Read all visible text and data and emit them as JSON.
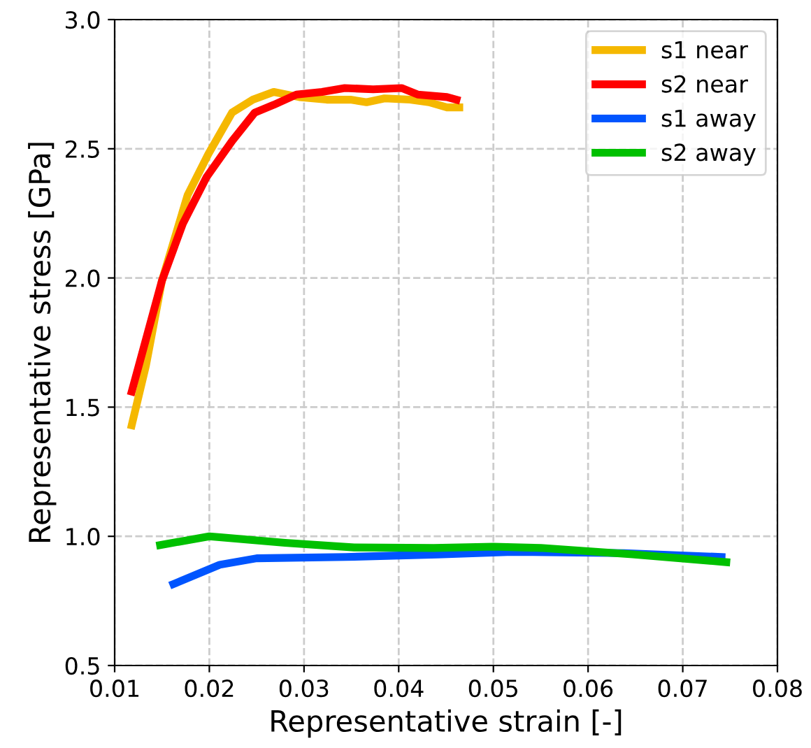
{
  "chart_data": {
    "type": "line",
    "xlabel": "Representative strain [-]",
    "ylabel": "Representative stress [GPa]",
    "xlim": [
      0.01,
      0.08
    ],
    "xticks": [
      {
        "value": 0.01,
        "label": "0.01"
      },
      {
        "value": 0.02,
        "label": "0.02"
      },
      {
        "value": 0.03,
        "label": "0.03"
      },
      {
        "value": 0.04,
        "label": "0.04"
      },
      {
        "value": 0.05,
        "label": "0.05"
      },
      {
        "value": 0.06,
        "label": "0.06"
      },
      {
        "value": 0.07,
        "label": "0.07"
      },
      {
        "value": 0.08,
        "label": "0.08"
      }
    ],
    "ylim": [
      0.5,
      3.0
    ],
    "yticks": [
      {
        "value": 0.5,
        "label": "0.5"
      },
      {
        "value": 1.0,
        "label": "1.0"
      },
      {
        "value": 1.5,
        "label": "1.5"
      },
      {
        "value": 2.0,
        "label": "2.0"
      },
      {
        "value": 2.5,
        "label": "2.5"
      },
      {
        "value": 3.0,
        "label": "3.0"
      }
    ],
    "grid": true,
    "legend": "top right",
    "line_style": "solid",
    "marker": "none",
    "series": [
      {
        "name": "s1 near",
        "color": "#f5b800",
        "x": [
          0.0118,
          0.0133,
          0.015,
          0.0177,
          0.0199,
          0.0224,
          0.0246,
          0.0268,
          0.0295,
          0.0324,
          0.0349,
          0.0366,
          0.0385,
          0.0412,
          0.0432,
          0.0451,
          0.0464
        ],
        "values": [
          1.43,
          1.66,
          1.99,
          2.32,
          2.48,
          2.64,
          2.69,
          2.72,
          2.7,
          2.69,
          2.69,
          2.68,
          2.695,
          2.69,
          2.68,
          2.66,
          2.66
        ]
      },
      {
        "name": "s2 near",
        "color": "#ff0000",
        "x": [
          0.0118,
          0.015,
          0.0172,
          0.0197,
          0.0224,
          0.0248,
          0.0268,
          0.0292,
          0.0319,
          0.0343,
          0.0373,
          0.0403,
          0.042,
          0.0451,
          0.0461
        ],
        "values": [
          1.56,
          1.99,
          2.21,
          2.39,
          2.53,
          2.64,
          2.67,
          2.71,
          2.72,
          2.735,
          2.73,
          2.735,
          2.71,
          2.7,
          2.69
        ]
      },
      {
        "name": "s1 away",
        "color": "#0055ff",
        "x": [
          0.0162,
          0.0211,
          0.025,
          0.0344,
          0.0441,
          0.052,
          0.0638,
          0.0741
        ],
        "values": [
          0.815,
          0.89,
          0.915,
          0.92,
          0.93,
          0.94,
          0.935,
          0.92
        ]
      },
      {
        "name": "s2 away",
        "color": "#00c000",
        "x": [
          0.0148,
          0.02,
          0.028,
          0.0353,
          0.0437,
          0.05,
          0.055,
          0.0647,
          0.0746
        ],
        "values": [
          0.966,
          1.0,
          0.975,
          0.957,
          0.955,
          0.96,
          0.955,
          0.93,
          0.9
        ]
      }
    ]
  }
}
